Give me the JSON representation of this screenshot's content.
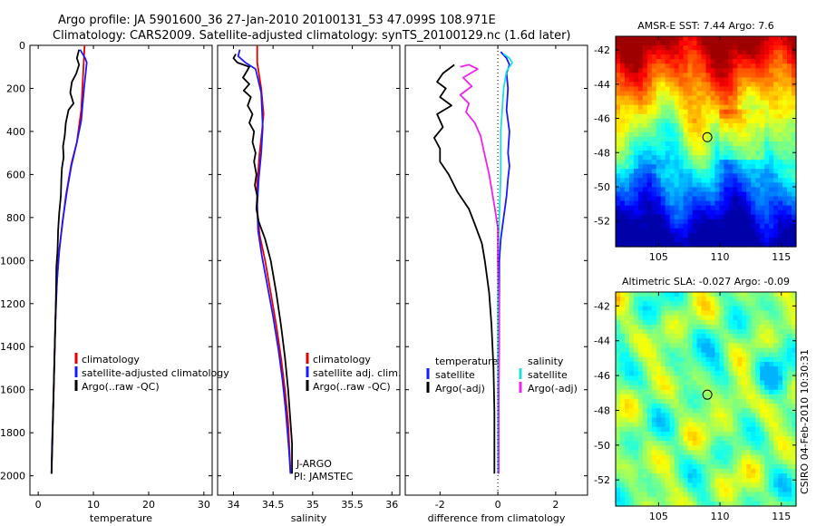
{
  "header": {
    "title_line1": "Argo profile: JA 5901600_36 27-Jan-2010 20100131_53 47.099S 108.971E",
    "title_line2": "Climatology: CARS2009. Satellite-adjusted climatology: synTS_20100129.nc (1.6d later)"
  },
  "footer": {
    "stamp": "CSIRO 04-Feb-2010 10:30:31"
  },
  "colors": {
    "climatology": "#e60000",
    "satellite_adjusted": "#1a1aff",
    "argo": "#000000",
    "salinity_satellite": "#22dddd",
    "salinity_argo": "#ee22ee",
    "zero_line": "#000000"
  },
  "chart_data": [
    {
      "id": "temperature",
      "type": "line",
      "xlabel": "temperature",
      "xlim": [
        -1.5,
        31.5
      ],
      "xticks": [
        0,
        10,
        20,
        30
      ],
      "xtick_labels": [
        "0",
        "10",
        "20",
        "30"
      ],
      "ylim": [
        2090,
        0
      ],
      "yticks": [
        0,
        200,
        400,
        600,
        800,
        1000,
        1200,
        1400,
        1600,
        1800,
        2000
      ],
      "ytick_labels": [
        "0",
        "200",
        "400",
        "600",
        "800",
        "1000",
        "1200",
        "1400",
        "1600",
        "1800",
        "2000"
      ],
      "legend": [
        "climatology",
        "satellite-adjusted climatology",
        "Argo(..raw -QC)"
      ],
      "series": [
        {
          "name": "climatology",
          "color_key": "climatology",
          "points": [
            [
              8.4,
              0
            ],
            [
              8.3,
              50
            ],
            [
              8.2,
              100
            ],
            [
              7.8,
              300
            ],
            [
              7.0,
              450
            ],
            [
              6.0,
              550
            ],
            [
              5.0,
              700
            ],
            [
              4.3,
              850
            ],
            [
              3.8,
              950
            ],
            [
              3.5,
              1050
            ],
            [
              3.2,
              1200
            ],
            [
              3.0,
              1400
            ],
            [
              2.8,
              1600
            ],
            [
              2.6,
              1800
            ],
            [
              2.4,
              1990
            ]
          ]
        },
        {
          "name": "satellite-adjusted climatology",
          "color_key": "satellite_adjusted",
          "points": [
            [
              7.6,
              20
            ],
            [
              8.5,
              60
            ],
            [
              8.8,
              80
            ],
            [
              8.3,
              200
            ],
            [
              7.8,
              350
            ],
            [
              7.0,
              450
            ],
            [
              6.0,
              560
            ],
            [
              5.2,
              680
            ],
            [
              4.4,
              820
            ],
            [
              3.8,
              960
            ],
            [
              3.4,
              1100
            ],
            [
              3.1,
              1300
            ],
            [
              2.9,
              1500
            ],
            [
              2.7,
              1700
            ],
            [
              2.5,
              1850
            ],
            [
              2.4,
              1990
            ]
          ]
        },
        {
          "name": "Argo(..raw -QC)",
          "color_key": "argo",
          "points": [
            [
              7.4,
              20
            ],
            [
              7.0,
              60
            ],
            [
              7.4,
              90
            ],
            [
              6.9,
              130
            ],
            [
              6.1,
              170
            ],
            [
              5.8,
              220
            ],
            [
              6.4,
              270
            ],
            [
              5.5,
              300
            ],
            [
              5.0,
              360
            ],
            [
              4.8,
              420
            ],
            [
              4.5,
              470
            ],
            [
              4.6,
              520
            ],
            [
              4.3,
              570
            ],
            [
              4.2,
              620
            ],
            [
              4.1,
              700
            ],
            [
              3.8,
              780
            ],
            [
              3.6,
              860
            ],
            [
              3.5,
              950
            ],
            [
              3.3,
              1030
            ],
            [
              3.2,
              1200
            ],
            [
              3.0,
              1400
            ],
            [
              2.8,
              1600
            ],
            [
              2.6,
              1800
            ],
            [
              2.5,
              1900
            ],
            [
              2.4,
              1990
            ]
          ]
        }
      ]
    },
    {
      "id": "salinity",
      "type": "line",
      "xlabel": "salinity",
      "xlim": [
        33.8,
        36.1
      ],
      "xticks": [
        34,
        34.5,
        35,
        35.5,
        36
      ],
      "xtick_labels": [
        "34",
        "34.5",
        "35",
        "35.5",
        "36"
      ],
      "ylim": [
        2090,
        0
      ],
      "yticks": [
        0,
        200,
        400,
        600,
        800,
        1000,
        1200,
        1400,
        1600,
        1800,
        2000
      ],
      "legend": [
        "climatology",
        "satellite adj. clim.",
        "Argo(..raw -QC)"
      ],
      "annotations": [
        "J-ARGO",
        "PI: JAMSTEC"
      ],
      "series": [
        {
          "name": "climatology",
          "color_key": "climatology",
          "points": [
            [
              34.3,
              0
            ],
            [
              34.3,
              80
            ],
            [
              34.35,
              200
            ],
            [
              34.38,
              320
            ],
            [
              34.36,
              400
            ],
            [
              34.33,
              500
            ],
            [
              34.3,
              640
            ],
            [
              34.3,
              760
            ],
            [
              34.33,
              880
            ],
            [
              34.4,
              1000
            ],
            [
              34.47,
              1150
            ],
            [
              34.54,
              1300
            ],
            [
              34.6,
              1450
            ],
            [
              34.65,
              1600
            ],
            [
              34.69,
              1750
            ],
            [
              34.71,
              1900
            ],
            [
              34.72,
              1990
            ]
          ]
        },
        {
          "name": "satellite adj. clim.",
          "color_key": "satellite_adjusted",
          "points": [
            [
              34.08,
              20
            ],
            [
              34.06,
              50
            ],
            [
              34.15,
              80
            ],
            [
              34.28,
              110
            ],
            [
              34.35,
              220
            ],
            [
              34.37,
              380
            ],
            [
              34.35,
              500
            ],
            [
              34.32,
              620
            ],
            [
              34.3,
              740
            ],
            [
              34.31,
              860
            ],
            [
              34.36,
              980
            ],
            [
              34.43,
              1120
            ],
            [
              34.5,
              1260
            ],
            [
              34.57,
              1420
            ],
            [
              34.62,
              1560
            ],
            [
              34.66,
              1700
            ],
            [
              34.7,
              1880
            ],
            [
              34.72,
              1990
            ]
          ]
        },
        {
          "name": "Argo(..raw -QC)",
          "color_key": "argo",
          "points": [
            [
              34.03,
              40
            ],
            [
              34.0,
              60
            ],
            [
              34.05,
              80
            ],
            [
              34.2,
              100
            ],
            [
              34.17,
              120
            ],
            [
              34.12,
              150
            ],
            [
              34.2,
              180
            ],
            [
              34.13,
              210
            ],
            [
              34.22,
              240
            ],
            [
              34.18,
              280
            ],
            [
              34.24,
              320
            ],
            [
              34.2,
              360
            ],
            [
              34.26,
              400
            ],
            [
              34.24,
              450
            ],
            [
              34.28,
              500
            ],
            [
              34.26,
              540
            ],
            [
              34.29,
              600
            ],
            [
              34.27,
              650
            ],
            [
              34.3,
              700
            ],
            [
              34.29,
              760
            ],
            [
              34.32,
              820
            ],
            [
              34.4,
              900
            ],
            [
              34.47,
              1000
            ],
            [
              34.54,
              1150
            ],
            [
              34.6,
              1300
            ],
            [
              34.65,
              1450
            ],
            [
              34.69,
              1600
            ],
            [
              34.72,
              1750
            ],
            [
              34.74,
              1850
            ],
            [
              34.74,
              1990
            ]
          ]
        }
      ]
    },
    {
      "id": "difference",
      "type": "line",
      "xlabel": "difference from climatology",
      "xlim": [
        -3.2,
        3.1
      ],
      "xticks": [
        -2,
        0,
        2
      ],
      "xtick_labels": [
        "-2",
        "0",
        "2"
      ],
      "ylim": [
        2090,
        0
      ],
      "yticks": [
        0,
        200,
        400,
        600,
        800,
        1000,
        1200,
        1400,
        1600,
        1800,
        2000
      ],
      "legend_headers": [
        "temperature",
        "salinity"
      ],
      "legend": [
        "satellite",
        "Argo(-adj)",
        "satellite",
        "Argo(-adj)"
      ],
      "series": [
        {
          "name": "temperature satellite",
          "color_key": "satellite_adjusted",
          "points": [
            [
              0.1,
              30
            ],
            [
              0.3,
              60
            ],
            [
              0.4,
              90
            ],
            [
              0.3,
              130
            ],
            [
              0.35,
              200
            ],
            [
              0.3,
              300
            ],
            [
              0.4,
              400
            ],
            [
              0.35,
              500
            ],
            [
              0.4,
              560
            ],
            [
              0.35,
              620
            ],
            [
              0.3,
              700
            ],
            [
              0.2,
              800
            ],
            [
              0.1,
              900
            ],
            [
              0.05,
              1000
            ],
            [
              0.05,
              1200
            ],
            [
              0.03,
              1500
            ],
            [
              0.03,
              1800
            ],
            [
              0.02,
              1990
            ]
          ]
        },
        {
          "name": "temperature Argo(-adj)",
          "color_key": "argo",
          "points": [
            [
              -1.5,
              90
            ],
            [
              -1.9,
              130
            ],
            [
              -2.1,
              170
            ],
            [
              -1.8,
              200
            ],
            [
              -2.0,
              240
            ],
            [
              -1.6,
              280
            ],
            [
              -2.1,
              320
            ],
            [
              -1.9,
              380
            ],
            [
              -2.2,
              430
            ],
            [
              -2.0,
              480
            ],
            [
              -2.0,
              540
            ],
            [
              -1.7,
              600
            ],
            [
              -1.4,
              680
            ],
            [
              -1.0,
              760
            ],
            [
              -0.8,
              830
            ],
            [
              -0.55,
              920
            ],
            [
              -0.45,
              1000
            ],
            [
              -0.3,
              1150
            ],
            [
              -0.22,
              1300
            ],
            [
              -0.15,
              1500
            ],
            [
              -0.12,
              1700
            ],
            [
              -0.12,
              1900
            ],
            [
              -0.12,
              1990
            ]
          ]
        },
        {
          "name": "salinity satellite",
          "color_key": "salinity_satellite",
          "points": [
            [
              0.2,
              40
            ],
            [
              0.4,
              60
            ],
            [
              0.5,
              80
            ],
            [
              0.3,
              120
            ],
            [
              0.2,
              200
            ],
            [
              0.1,
              400
            ],
            [
              0.1,
              600
            ],
            [
              0.05,
              800
            ],
            [
              0.0,
              1000
            ],
            [
              0.0,
              1200
            ],
            [
              0.0,
              1400
            ],
            [
              0.0,
              1600
            ],
            [
              0.0,
              1800
            ],
            [
              0.0,
              1990
            ]
          ]
        },
        {
          "name": "salinity Argo(-adj)",
          "color_key": "salinity_argo",
          "points": [
            [
              -1.3,
              100
            ],
            [
              -1.0,
              90
            ],
            [
              -0.7,
              110
            ],
            [
              -1.2,
              150
            ],
            [
              -0.9,
              190
            ],
            [
              -1.3,
              230
            ],
            [
              -1.0,
              270
            ],
            [
              -1.1,
              310
            ],
            [
              -0.8,
              360
            ],
            [
              -0.6,
              420
            ],
            [
              -0.5,
              480
            ],
            [
              -0.4,
              540
            ],
            [
              -0.3,
              600
            ],
            [
              -0.2,
              680
            ],
            [
              -0.1,
              760
            ],
            [
              0.0,
              850
            ],
            [
              0.0,
              1000
            ],
            [
              0.05,
              1200
            ],
            [
              0.05,
              1400
            ],
            [
              0.03,
              1600
            ],
            [
              0.03,
              1800
            ],
            [
              0.03,
              1990
            ]
          ]
        }
      ]
    },
    {
      "id": "amsre_sst",
      "type": "heatmap",
      "title": "AMSR-E SST: 7.44  Argo: 7.6",
      "xlim": [
        101.5,
        116.2
      ],
      "ylim": [
        -53.5,
        -41.2
      ],
      "xticks": [
        105,
        110,
        115
      ],
      "xtick_labels": [
        "105",
        "110",
        "115"
      ],
      "yticks": [
        -42,
        -44,
        -46,
        -48,
        -50,
        -52
      ],
      "ytick_labels": [
        "-42",
        "-44",
        "-46",
        "-48",
        "-50",
        "-52"
      ],
      "marker": [
        108.971,
        -47.099
      ],
      "colormap": "jet"
    },
    {
      "id": "altimetric_sla",
      "type": "heatmap",
      "title": "Altimetric SLA: -0.027  Argo: -0.09",
      "xlim": [
        101.5,
        116.2
      ],
      "ylim": [
        -53.5,
        -41.2
      ],
      "xticks": [
        105,
        110,
        115
      ],
      "xtick_labels": [
        "105",
        "110",
        "115"
      ],
      "yticks": [
        -42,
        -44,
        -46,
        -48,
        -50,
        -52
      ],
      "ytick_labels": [
        "-42",
        "-44",
        "-46",
        "-48",
        "-50",
        "-52"
      ],
      "marker": [
        108.971,
        -47.099
      ],
      "colormap": "jet"
    }
  ]
}
